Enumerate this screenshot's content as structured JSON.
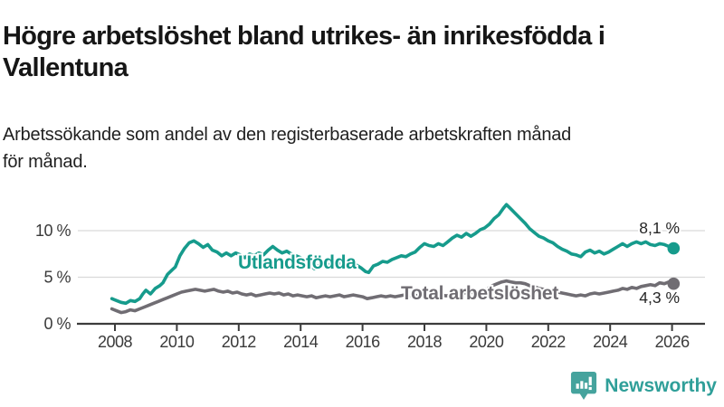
{
  "header": {
    "title": "Högre arbetslöshet bland utrikes- än inrikesfödda i Vallentuna",
    "title_line1": "Högre arbetslöshet bland utrikes- än inrikesfödda i",
    "title_line2": "Vallentuna",
    "subtitle": "Arbetssökande som andel av den registerbaserade arbetskraften månad för månad.",
    "subtitle_line1": "Arbetssökande som andel av den registerbaserade arbetskraften månad",
    "subtitle_line2": "för månad."
  },
  "footer": {
    "brand_name": "Newsworthy",
    "logo_icon": "newsworthy-speech-bubble-bar-chart-icon"
  },
  "colors": {
    "series_utlandsfodda": "#169b8c",
    "series_total": "#706d73",
    "axis_line": "#3c3c3c",
    "grid_line": "#d9d9d9",
    "tick_text": "#3a3a3a",
    "end_label_text": "#262626",
    "brand_teal": "#2f9f99",
    "logo_bubble": "#45a39d"
  },
  "chart_data": {
    "type": "line",
    "title": "Högre arbetslöshet bland utrikes- än inrikesfödda i Vallentuna",
    "subtitle": "Arbetssökande som andel av den registerbaserade arbetskraften månad för månad.",
    "xlabel": "",
    "ylabel": "%",
    "xlim": [
      2007.9,
      2026.4
    ],
    "ylim": [
      0,
      13.5
    ],
    "grid": "horizontal",
    "legend_position": "inline-labels",
    "x_ticks": [
      2008,
      2010,
      2012,
      2014,
      2016,
      2018,
      2020,
      2022,
      2024,
      2026
    ],
    "y_ticks": [
      0,
      5,
      10
    ],
    "y_tick_labels": [
      "0 %",
      "5 %",
      "10 %"
    ],
    "series": [
      {
        "name": "Utlandsfödda",
        "color": "#169b8c",
        "end_label": "8,1 %",
        "last_value": 8.1,
        "points": [
          [
            2007.9,
            2.7
          ],
          [
            2008.05,
            2.5
          ],
          [
            2008.2,
            2.3
          ],
          [
            2008.35,
            2.2
          ],
          [
            2008.5,
            2.5
          ],
          [
            2008.65,
            2.4
          ],
          [
            2008.8,
            2.7
          ],
          [
            2008.9,
            3.2
          ],
          [
            2009.0,
            3.6
          ],
          [
            2009.15,
            3.2
          ],
          [
            2009.3,
            3.8
          ],
          [
            2009.45,
            4.1
          ],
          [
            2009.55,
            4.4
          ],
          [
            2009.7,
            5.3
          ],
          [
            2009.85,
            5.8
          ],
          [
            2009.95,
            6.1
          ],
          [
            2010.1,
            7.3
          ],
          [
            2010.25,
            8.1
          ],
          [
            2010.4,
            8.7
          ],
          [
            2010.55,
            8.9
          ],
          [
            2010.7,
            8.6
          ],
          [
            2010.85,
            8.2
          ],
          [
            2011.0,
            8.5
          ],
          [
            2011.15,
            7.9
          ],
          [
            2011.3,
            7.7
          ],
          [
            2011.45,
            7.3
          ],
          [
            2011.6,
            7.6
          ],
          [
            2011.75,
            7.3
          ],
          [
            2011.9,
            7.6
          ],
          [
            2012.05,
            7.4
          ],
          [
            2012.2,
            7.1
          ],
          [
            2012.35,
            7.5
          ],
          [
            2012.5,
            7.3
          ],
          [
            2012.65,
            7.6
          ],
          [
            2012.8,
            7.4
          ],
          [
            2012.95,
            7.9
          ],
          [
            2013.1,
            8.3
          ],
          [
            2013.25,
            7.9
          ],
          [
            2013.4,
            7.6
          ],
          [
            2013.55,
            7.8
          ],
          [
            2013.7,
            7.5
          ],
          [
            2013.85,
            7.3
          ],
          [
            2014.0,
            7.1
          ],
          [
            2014.15,
            6.7
          ],
          [
            2014.3,
            6.3
          ],
          [
            2014.45,
            5.9
          ],
          [
            2014.6,
            6.3
          ],
          [
            2014.75,
            6.6
          ],
          [
            2014.9,
            6.3
          ],
          [
            2015.05,
            6.6
          ],
          [
            2015.2,
            6.4
          ],
          [
            2015.35,
            6.6
          ],
          [
            2015.5,
            6.3
          ],
          [
            2015.65,
            6.5
          ],
          [
            2015.8,
            6.3
          ],
          [
            2015.95,
            6.0
          ],
          [
            2016.1,
            5.6
          ],
          [
            2016.2,
            5.5
          ],
          [
            2016.35,
            6.2
          ],
          [
            2016.5,
            6.4
          ],
          [
            2016.65,
            6.7
          ],
          [
            2016.8,
            6.6
          ],
          [
            2016.95,
            6.9
          ],
          [
            2017.1,
            7.1
          ],
          [
            2017.25,
            7.3
          ],
          [
            2017.4,
            7.2
          ],
          [
            2017.55,
            7.5
          ],
          [
            2017.7,
            7.7
          ],
          [
            2017.85,
            8.2
          ],
          [
            2018.0,
            8.6
          ],
          [
            2018.15,
            8.4
          ],
          [
            2018.3,
            8.3
          ],
          [
            2018.45,
            8.6
          ],
          [
            2018.6,
            8.4
          ],
          [
            2018.75,
            8.8
          ],
          [
            2018.9,
            9.2
          ],
          [
            2019.05,
            9.5
          ],
          [
            2019.2,
            9.3
          ],
          [
            2019.35,
            9.7
          ],
          [
            2019.5,
            9.4
          ],
          [
            2019.65,
            9.7
          ],
          [
            2019.8,
            10.1
          ],
          [
            2019.95,
            10.3
          ],
          [
            2020.1,
            10.7
          ],
          [
            2020.25,
            11.3
          ],
          [
            2020.4,
            11.7
          ],
          [
            2020.55,
            12.4
          ],
          [
            2020.65,
            12.8
          ],
          [
            2020.8,
            12.3
          ],
          [
            2020.95,
            11.8
          ],
          [
            2021.1,
            11.3
          ],
          [
            2021.25,
            10.8
          ],
          [
            2021.4,
            10.2
          ],
          [
            2021.55,
            9.8
          ],
          [
            2021.7,
            9.4
          ],
          [
            2021.85,
            9.2
          ],
          [
            2022.0,
            8.9
          ],
          [
            2022.15,
            8.7
          ],
          [
            2022.3,
            8.3
          ],
          [
            2022.45,
            8.0
          ],
          [
            2022.6,
            7.8
          ],
          [
            2022.75,
            7.5
          ],
          [
            2022.9,
            7.4
          ],
          [
            2023.05,
            7.2
          ],
          [
            2023.2,
            7.7
          ],
          [
            2023.35,
            7.9
          ],
          [
            2023.5,
            7.6
          ],
          [
            2023.65,
            7.8
          ],
          [
            2023.8,
            7.5
          ],
          [
            2023.95,
            7.7
          ],
          [
            2024.1,
            8.0
          ],
          [
            2024.25,
            8.3
          ],
          [
            2024.4,
            8.6
          ],
          [
            2024.55,
            8.3
          ],
          [
            2024.7,
            8.6
          ],
          [
            2024.85,
            8.8
          ],
          [
            2025.0,
            8.6
          ],
          [
            2025.15,
            8.8
          ],
          [
            2025.3,
            8.5
          ],
          [
            2025.45,
            8.4
          ],
          [
            2025.6,
            8.6
          ],
          [
            2025.75,
            8.5
          ],
          [
            2025.9,
            8.3
          ],
          [
            2026.05,
            8.1
          ]
        ]
      },
      {
        "name": "Total arbetslöshet",
        "color": "#706d73",
        "end_label": "4,3 %",
        "last_value": 4.3,
        "points": [
          [
            2007.9,
            1.6
          ],
          [
            2008.05,
            1.4
          ],
          [
            2008.2,
            1.2
          ],
          [
            2008.35,
            1.3
          ],
          [
            2008.5,
            1.5
          ],
          [
            2008.65,
            1.4
          ],
          [
            2008.8,
            1.6
          ],
          [
            2008.95,
            1.8
          ],
          [
            2009.1,
            2.0
          ],
          [
            2009.25,
            2.2
          ],
          [
            2009.4,
            2.4
          ],
          [
            2009.55,
            2.6
          ],
          [
            2009.7,
            2.8
          ],
          [
            2009.85,
            3.0
          ],
          [
            2010.0,
            3.2
          ],
          [
            2010.15,
            3.4
          ],
          [
            2010.3,
            3.5
          ],
          [
            2010.45,
            3.6
          ],
          [
            2010.6,
            3.7
          ],
          [
            2010.75,
            3.6
          ],
          [
            2010.9,
            3.5
          ],
          [
            2011.05,
            3.6
          ],
          [
            2011.2,
            3.7
          ],
          [
            2011.35,
            3.5
          ],
          [
            2011.5,
            3.4
          ],
          [
            2011.65,
            3.5
          ],
          [
            2011.8,
            3.3
          ],
          [
            2011.95,
            3.4
          ],
          [
            2012.1,
            3.2
          ],
          [
            2012.25,
            3.1
          ],
          [
            2012.4,
            3.2
          ],
          [
            2012.55,
            3.0
          ],
          [
            2012.7,
            3.1
          ],
          [
            2012.85,
            3.2
          ],
          [
            2013.0,
            3.3
          ],
          [
            2013.15,
            3.2
          ],
          [
            2013.3,
            3.3
          ],
          [
            2013.45,
            3.1
          ],
          [
            2013.6,
            3.2
          ],
          [
            2013.75,
            3.0
          ],
          [
            2013.9,
            3.1
          ],
          [
            2014.05,
            3.0
          ],
          [
            2014.2,
            2.9
          ],
          [
            2014.35,
            3.0
          ],
          [
            2014.5,
            2.8
          ],
          [
            2014.65,
            2.9
          ],
          [
            2014.8,
            3.0
          ],
          [
            2014.95,
            2.9
          ],
          [
            2015.1,
            3.0
          ],
          [
            2015.25,
            3.1
          ],
          [
            2015.4,
            2.9
          ],
          [
            2015.55,
            3.0
          ],
          [
            2015.7,
            3.1
          ],
          [
            2015.85,
            3.0
          ],
          [
            2016.0,
            2.9
          ],
          [
            2016.15,
            2.7
          ],
          [
            2016.3,
            2.8
          ],
          [
            2016.45,
            2.9
          ],
          [
            2016.6,
            3.0
          ],
          [
            2016.75,
            2.9
          ],
          [
            2016.9,
            3.0
          ],
          [
            2017.05,
            2.9
          ],
          [
            2017.2,
            3.0
          ],
          [
            2017.35,
            3.1
          ],
          [
            2017.5,
            3.0
          ],
          [
            2017.65,
            3.1
          ],
          [
            2017.8,
            3.0
          ],
          [
            2017.95,
            3.1
          ],
          [
            2018.1,
            3.0
          ],
          [
            2018.25,
            2.9
          ],
          [
            2018.4,
            3.0
          ],
          [
            2018.55,
            3.1
          ],
          [
            2018.7,
            3.0
          ],
          [
            2018.85,
            3.1
          ],
          [
            2019.0,
            3.2
          ],
          [
            2019.15,
            3.2
          ],
          [
            2019.3,
            3.3
          ],
          [
            2019.45,
            3.3
          ],
          [
            2019.6,
            3.4
          ],
          [
            2019.75,
            3.4
          ],
          [
            2019.9,
            3.5
          ],
          [
            2020.05,
            3.8
          ],
          [
            2020.2,
            4.1
          ],
          [
            2020.35,
            4.3
          ],
          [
            2020.5,
            4.5
          ],
          [
            2020.65,
            4.6
          ],
          [
            2020.8,
            4.5
          ],
          [
            2020.95,
            4.4
          ],
          [
            2021.1,
            4.4
          ],
          [
            2021.25,
            4.3
          ],
          [
            2021.4,
            4.1
          ],
          [
            2021.55,
            4.0
          ],
          [
            2021.7,
            3.8
          ],
          [
            2021.85,
            3.7
          ],
          [
            2022.0,
            3.6
          ],
          [
            2022.15,
            3.5
          ],
          [
            2022.3,
            3.4
          ],
          [
            2022.45,
            3.3
          ],
          [
            2022.6,
            3.2
          ],
          [
            2022.75,
            3.1
          ],
          [
            2022.9,
            3.0
          ],
          [
            2023.05,
            3.1
          ],
          [
            2023.2,
            3.0
          ],
          [
            2023.35,
            3.2
          ],
          [
            2023.5,
            3.3
          ],
          [
            2023.65,
            3.2
          ],
          [
            2023.8,
            3.3
          ],
          [
            2023.95,
            3.4
          ],
          [
            2024.1,
            3.5
          ],
          [
            2024.25,
            3.6
          ],
          [
            2024.4,
            3.8
          ],
          [
            2024.55,
            3.7
          ],
          [
            2024.7,
            3.9
          ],
          [
            2024.85,
            3.8
          ],
          [
            2025.0,
            4.0
          ],
          [
            2025.15,
            4.1
          ],
          [
            2025.3,
            4.2
          ],
          [
            2025.45,
            4.1
          ],
          [
            2025.6,
            4.4
          ],
          [
            2025.75,
            4.3
          ],
          [
            2025.9,
            4.5
          ],
          [
            2026.05,
            4.3
          ]
        ]
      }
    ]
  }
}
